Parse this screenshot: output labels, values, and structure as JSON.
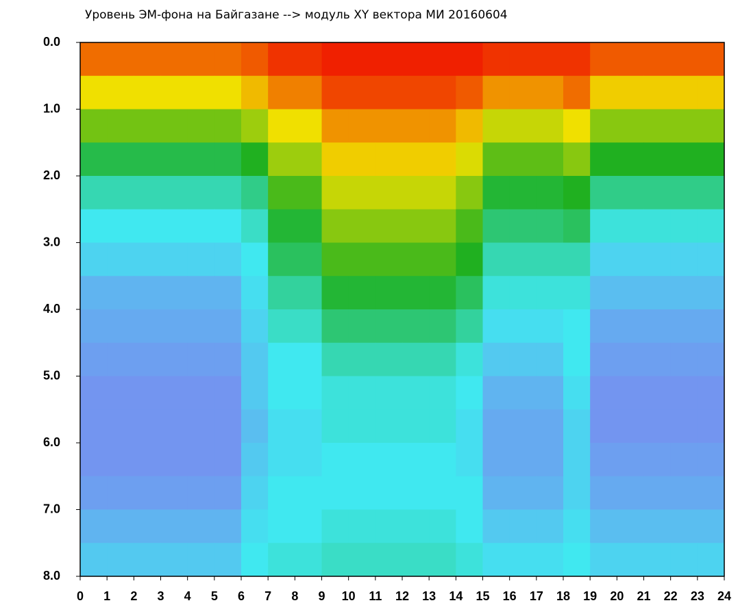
{
  "chart_data": {
    "type": "heatmap",
    "title": "Уровень ЭМ-фона на Байгазане  -->  модуль XY вектора МИ  20160604",
    "xbins": [
      0,
      1,
      2,
      3,
      4,
      5,
      6,
      7,
      8,
      9,
      10,
      11,
      12,
      13,
      14,
      15,
      16,
      17,
      18,
      19,
      20,
      21,
      22,
      23,
      24
    ],
    "ybins": [
      0,
      0.5,
      1,
      1.5,
      2,
      2.5,
      3,
      3.5,
      4,
      4.5,
      5,
      5.5,
      6,
      6.5,
      7,
      7.5,
      8
    ],
    "xlim": [
      0,
      24
    ],
    "ylim": [
      8,
      0
    ],
    "xticks": [
      0,
      1,
      2,
      3,
      4,
      5,
      6,
      7,
      8,
      9,
      10,
      11,
      12,
      13,
      14,
      15,
      16,
      17,
      18,
      19,
      20,
      21,
      22,
      23,
      24
    ],
    "yticks": [
      {
        "value": 0,
        "label": "0.0"
      },
      {
        "value": 1,
        "label": "1.0"
      },
      {
        "value": 2,
        "label": "2.0"
      },
      {
        "value": 3,
        "label": "3.0"
      },
      {
        "value": 4,
        "label": "4.0"
      },
      {
        "value": 5,
        "label": "5.0"
      },
      {
        "value": 6,
        "label": "6.0"
      },
      {
        "value": 7,
        "label": "7.0"
      },
      {
        "value": 8,
        "label": "8.0"
      }
    ],
    "colors": [
      "#2020d0",
      "#8080f0",
      "#40e8f0",
      "#20b020",
      "#f0e000",
      "#f02000"
    ],
    "z": [
      [
        4.6,
        4.6,
        4.6,
        4.6,
        4.6,
        4.6,
        4.7,
        4.9,
        4.9,
        5.0,
        5.0,
        5.0,
        5.0,
        5.0,
        5.0,
        4.9,
        4.9,
        4.9,
        4.9,
        4.7,
        4.7,
        4.7,
        4.7,
        4.7
      ],
      [
        4.0,
        4.0,
        4.0,
        4.0,
        4.0,
        4.0,
        4.2,
        4.5,
        4.5,
        4.8,
        4.8,
        4.8,
        4.8,
        4.8,
        4.7,
        4.4,
        4.4,
        4.4,
        4.6,
        4.1,
        4.1,
        4.1,
        4.1,
        4.1
      ],
      [
        3.4,
        3.4,
        3.4,
        3.4,
        3.4,
        3.4,
        3.6,
        4.0,
        4.0,
        4.4,
        4.4,
        4.4,
        4.4,
        4.4,
        4.2,
        3.8,
        3.8,
        3.8,
        4.0,
        3.5,
        3.5,
        3.5,
        3.5,
        3.5
      ],
      [
        2.8,
        2.8,
        2.8,
        2.8,
        2.8,
        2.8,
        3.0,
        3.6,
        3.6,
        4.1,
        4.1,
        4.1,
        4.1,
        4.1,
        3.9,
        3.3,
        3.3,
        3.3,
        3.5,
        3.0,
        3.0,
        3.0,
        3.0,
        3.0
      ],
      [
        2.3,
        2.3,
        2.3,
        2.3,
        2.3,
        2.3,
        2.5,
        3.2,
        3.2,
        3.8,
        3.8,
        3.8,
        3.8,
        3.8,
        3.5,
        2.9,
        2.9,
        2.9,
        3.0,
        2.5,
        2.5,
        2.5,
        2.5,
        2.5
      ],
      [
        2.0,
        2.0,
        2.0,
        2.0,
        2.0,
        2.0,
        2.2,
        2.9,
        2.9,
        3.5,
        3.5,
        3.5,
        3.5,
        3.5,
        3.2,
        2.6,
        2.6,
        2.6,
        2.7,
        2.1,
        2.1,
        2.1,
        2.1,
        2.1
      ],
      [
        1.8,
        1.8,
        1.8,
        1.8,
        1.8,
        1.8,
        2.0,
        2.7,
        2.7,
        3.2,
        3.2,
        3.2,
        3.2,
        3.2,
        3.0,
        2.3,
        2.3,
        2.3,
        2.3,
        1.8,
        1.8,
        1.8,
        1.8,
        1.8
      ],
      [
        1.5,
        1.5,
        1.5,
        1.5,
        1.5,
        1.5,
        1.9,
        2.4,
        2.4,
        2.9,
        2.9,
        2.9,
        2.9,
        2.9,
        2.7,
        2.1,
        2.1,
        2.1,
        2.1,
        1.6,
        1.6,
        1.6,
        1.6,
        1.6
      ],
      [
        1.4,
        1.4,
        1.4,
        1.4,
        1.4,
        1.4,
        1.8,
        2.2,
        2.2,
        2.6,
        2.6,
        2.6,
        2.6,
        2.6,
        2.4,
        1.9,
        1.9,
        1.9,
        2.0,
        1.4,
        1.4,
        1.4,
        1.4,
        1.4
      ],
      [
        1.3,
        1.3,
        1.3,
        1.3,
        1.3,
        1.3,
        1.7,
        2.0,
        2.0,
        2.3,
        2.3,
        2.3,
        2.3,
        2.3,
        2.1,
        1.7,
        1.7,
        1.7,
        2.0,
        1.3,
        1.3,
        1.3,
        1.3,
        1.3
      ],
      [
        1.2,
        1.2,
        1.2,
        1.2,
        1.2,
        1.2,
        1.7,
        2.0,
        2.0,
        2.1,
        2.1,
        2.1,
        2.1,
        2.1,
        2.0,
        1.5,
        1.5,
        1.5,
        1.9,
        1.2,
        1.2,
        1.2,
        1.2,
        1.2
      ],
      [
        1.2,
        1.2,
        1.2,
        1.2,
        1.2,
        1.2,
        1.6,
        1.9,
        1.9,
        2.1,
        2.1,
        2.1,
        2.1,
        2.1,
        1.9,
        1.4,
        1.4,
        1.4,
        1.8,
        1.2,
        1.2,
        1.2,
        1.2,
        1.2
      ],
      [
        1.2,
        1.2,
        1.2,
        1.2,
        1.2,
        1.2,
        1.7,
        1.9,
        1.9,
        2.0,
        2.0,
        2.0,
        2.0,
        2.0,
        1.9,
        1.4,
        1.4,
        1.4,
        1.8,
        1.3,
        1.3,
        1.3,
        1.3,
        1.3
      ],
      [
        1.3,
        1.3,
        1.3,
        1.3,
        1.3,
        1.3,
        1.8,
        2.0,
        2.0,
        2.0,
        2.0,
        2.0,
        2.0,
        2.0,
        2.0,
        1.5,
        1.5,
        1.5,
        1.8,
        1.4,
        1.4,
        1.4,
        1.4,
        1.4
      ],
      [
        1.5,
        1.5,
        1.5,
        1.5,
        1.5,
        1.5,
        1.9,
        2.0,
        2.0,
        2.1,
        2.1,
        2.1,
        2.1,
        2.1,
        2.0,
        1.7,
        1.7,
        1.7,
        1.9,
        1.6,
        1.6,
        1.6,
        1.6,
        1.6
      ],
      [
        1.7,
        1.7,
        1.7,
        1.7,
        1.7,
        1.7,
        2.0,
        2.1,
        2.1,
        2.2,
        2.2,
        2.2,
        2.2,
        2.2,
        2.1,
        1.9,
        1.9,
        1.9,
        2.0,
        1.8,
        1.8,
        1.8,
        1.8,
        1.8
      ]
    ]
  }
}
